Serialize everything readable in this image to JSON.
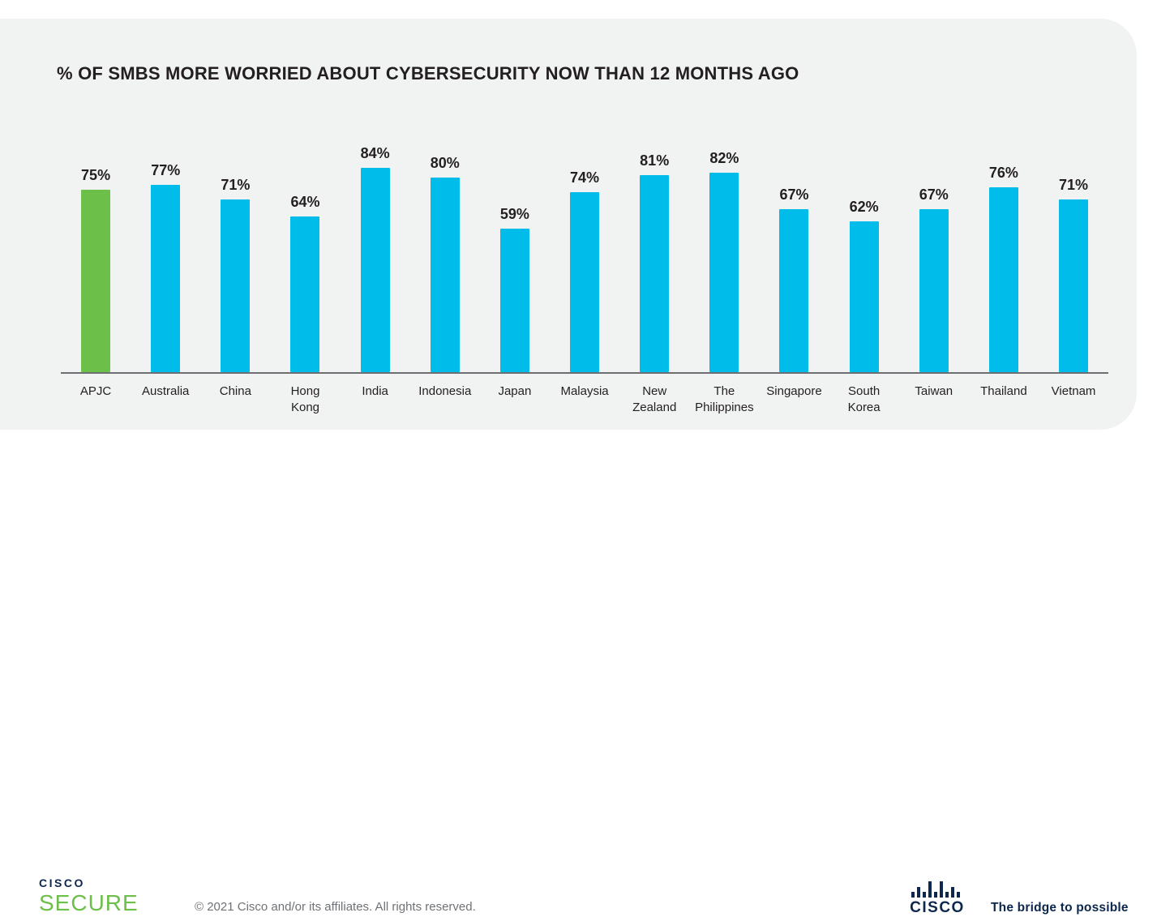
{
  "title": "% OF SMBS MORE WORRIED ABOUT CYBERSECURITY NOW THAN 12 MONTHS AGO",
  "chart_data": {
    "type": "bar",
    "title": "% OF SMBS MORE WORRIED ABOUT CYBERSECURITY NOW THAN 12 MONTHS AGO",
    "categories": [
      "APJC",
      "Australia",
      "China",
      "Hong Kong",
      "India",
      "Indonesia",
      "Japan",
      "Malaysia",
      "New Zealand",
      "The Philippines",
      "Singapore",
      "South Korea",
      "Taiwan",
      "Thailand",
      "Vietnam"
    ],
    "category_display": [
      "APJC",
      "Australia",
      "China",
      "Hong\nKong",
      "India",
      "Indonesia",
      "Japan",
      "Malaysia",
      "New\nZealand",
      "The\nPhilippines",
      "Singapore",
      "South\nKorea",
      "Taiwan",
      "Thailand",
      "Vietnam"
    ],
    "values": [
      75,
      77,
      71,
      64,
      84,
      80,
      59,
      74,
      81,
      82,
      67,
      62,
      67,
      76,
      71
    ],
    "value_labels": [
      "75%",
      "77%",
      "71%",
      "64%",
      "84%",
      "80%",
      "59%",
      "74%",
      "81%",
      "82%",
      "67%",
      "62%",
      "67%",
      "76%",
      "71%"
    ],
    "highlight_index": 0,
    "bar_color": "#00bceb",
    "highlight_color": "#6cc04a",
    "xlabel": "",
    "ylabel": "",
    "ylim": [
      0,
      100
    ],
    "grid": false,
    "legend": "none",
    "data_labels": "above bars"
  },
  "footer": {
    "brand": {
      "line1": "CISCO",
      "line2": "SECURE"
    },
    "copyright": "© 2021 Cisco and/or its affiliates. All rights reserved.",
    "cisco_logo_text": "CISCO",
    "tagline": "The bridge to possible"
  },
  "colors": {
    "card_background": "#f1f2f2",
    "bar_blue": "#00bceb",
    "bar_green": "#6cc04a",
    "text_dark": "#231f20",
    "axis_gray": "#6d6e71",
    "copyright_gray": "#6f7276",
    "cisco_navy": "#0d274d",
    "secure_green": "#6cc04a"
  }
}
